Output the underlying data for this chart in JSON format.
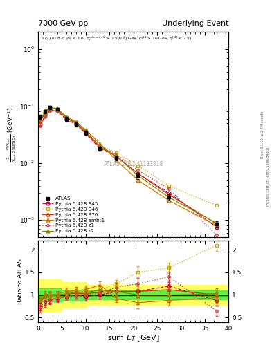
{
  "title_left": "7000 GeV pp",
  "title_right": "Underlying Event",
  "ylabel_main": "$\\frac{1}{N_{evt}}\\frac{d\\,N_{evt}}{d\\,\\mathrm{sum}\\,E_T}$ [GeV$^{-1}$]",
  "ylabel_ratio": "Ratio to ATLAS",
  "xlabel": "sum $E_T$ [GeV]",
  "watermark": "ATLAS_2012_I1183818",
  "rivet_text": "Rivet 3.1.10, ≥ 2.4M events",
  "arxiv_text": "mcplots.cern.ch [arXiv:1306.3436]",
  "x_atlas": [
    0.5,
    1.5,
    2.5,
    4.0,
    6.0,
    8.0,
    10.0,
    13.0,
    16.5,
    21.0,
    27.5,
    37.5
  ],
  "y_atlas": [
    0.065,
    0.08,
    0.095,
    0.088,
    0.06,
    0.048,
    0.034,
    0.018,
    0.012,
    0.006,
    0.0025,
    0.00085
  ],
  "y_atlas_err": [
    0.005,
    0.006,
    0.007,
    0.006,
    0.005,
    0.004,
    0.003,
    0.0015,
    0.001,
    0.0008,
    0.0003,
    0.0001
  ],
  "x_345": [
    0.5,
    1.5,
    2.5,
    4.0,
    6.0,
    8.0,
    10.0,
    13.0,
    16.5,
    21.0,
    27.5,
    37.5
  ],
  "y_345": [
    0.048,
    0.068,
    0.085,
    0.082,
    0.058,
    0.048,
    0.033,
    0.018,
    0.013,
    0.0065,
    0.003,
    0.00075
  ],
  "x_346": [
    0.5,
    1.5,
    2.5,
    4.0,
    6.0,
    8.0,
    10.0,
    13.0,
    16.5,
    21.0,
    27.5,
    37.5
  ],
  "y_346": [
    0.055,
    0.075,
    0.09,
    0.085,
    0.062,
    0.052,
    0.037,
    0.02,
    0.015,
    0.009,
    0.004,
    0.0018
  ],
  "x_370": [
    0.5,
    1.5,
    2.5,
    4.0,
    6.0,
    8.0,
    10.0,
    13.0,
    16.5,
    21.0,
    27.5,
    37.5
  ],
  "y_370": [
    0.055,
    0.078,
    0.094,
    0.088,
    0.061,
    0.05,
    0.035,
    0.019,
    0.013,
    0.0065,
    0.0028,
    0.00085
  ],
  "x_ambt1": [
    0.5,
    1.5,
    2.5,
    4.0,
    6.0,
    8.0,
    10.0,
    13.0,
    16.5,
    21.0,
    27.5,
    37.5
  ],
  "y_ambt1": [
    0.058,
    0.082,
    0.096,
    0.09,
    0.065,
    0.053,
    0.038,
    0.022,
    0.011,
    0.005,
    0.0022,
    0.0008
  ],
  "x_z1": [
    0.5,
    1.5,
    2.5,
    4.0,
    6.0,
    8.0,
    10.0,
    13.0,
    16.5,
    21.0,
    27.5,
    37.5
  ],
  "y_z1": [
    0.045,
    0.065,
    0.083,
    0.08,
    0.058,
    0.048,
    0.034,
    0.019,
    0.014,
    0.0075,
    0.0035,
    0.00055
  ],
  "x_z2": [
    0.5,
    1.5,
    2.5,
    4.0,
    6.0,
    8.0,
    10.0,
    13.0,
    16.5,
    21.0,
    27.5,
    37.5
  ],
  "y_z2": [
    0.058,
    0.078,
    0.093,
    0.088,
    0.062,
    0.051,
    0.036,
    0.02,
    0.013,
    0.006,
    0.0025,
    0.00088
  ],
  "ratio_x": [
    0.5,
    1.5,
    2.5,
    4.0,
    6.0,
    8.0,
    10.0,
    13.0,
    16.5,
    21.0,
    27.5,
    37.5
  ],
  "ratio_345": [
    0.74,
    0.85,
    0.89,
    0.93,
    0.97,
    1.0,
    0.97,
    1.0,
    1.08,
    1.08,
    1.2,
    0.88
  ],
  "ratio_346": [
    0.85,
    0.94,
    0.95,
    0.97,
    1.03,
    1.08,
    1.09,
    1.11,
    1.25,
    1.5,
    1.6,
    2.1
  ],
  "ratio_370": [
    0.85,
    0.975,
    0.99,
    1.0,
    1.02,
    1.04,
    1.03,
    1.06,
    1.08,
    1.08,
    1.12,
    1.0
  ],
  "ratio_ambt1": [
    0.89,
    1.02,
    1.01,
    1.02,
    1.08,
    1.1,
    1.12,
    1.22,
    0.92,
    0.83,
    0.88,
    0.94
  ],
  "ratio_z1": [
    0.69,
    0.81,
    0.87,
    0.91,
    0.97,
    1.0,
    1.0,
    1.06,
    1.17,
    1.25,
    1.4,
    0.65
  ],
  "ratio_z2": [
    0.89,
    0.975,
    0.98,
    1.0,
    1.03,
    1.06,
    1.06,
    1.11,
    1.08,
    1.0,
    1.0,
    1.03
  ],
  "ratio_err": [
    0.08,
    0.07,
    0.07,
    0.07,
    0.08,
    0.08,
    0.09,
    0.08,
    0.08,
    0.13,
    0.12,
    0.12
  ],
  "color_345": "#cc0044",
  "color_346": "#ccaa00",
  "color_370": "#cc3300",
  "color_ambt1": "#cc7700",
  "color_z1": "#cc4444",
  "color_z2": "#888800",
  "color_atlas": "#000000",
  "xlim": [
    0,
    40
  ],
  "ylim_main": [
    0.0005,
    2.0
  ],
  "ylim_ratio": [
    0.4,
    2.2
  ]
}
